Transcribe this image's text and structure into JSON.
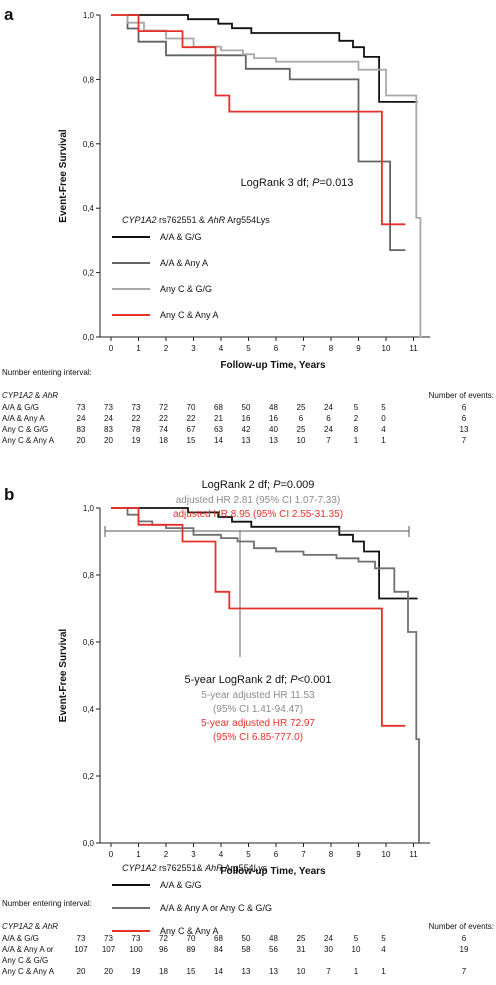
{
  "panels": [
    {
      "id": "a",
      "label": "a",
      "logrank": {
        "prefix": "LogRank 3 df; ",
        "p_label": "P",
        "p_value": "=0.013"
      },
      "hr_lines": [],
      "legend": {
        "gene1": "CYP1A2",
        "gene1_snp": " rs762551 & ",
        "gene2": "AhR",
        "gene2_variant": " Arg554Lys",
        "items": [
          "A/A & G/G",
          "A/A & Any A",
          "Any C & G/G",
          "Any C & Any A"
        ]
      },
      "table": {
        "heading": "Number entering interval:",
        "gene1": "CYP1A2",
        "amp": " & ",
        "gene2": "AhR",
        "events_heading": "Number of events:",
        "rows": [
          {
            "label": [
              "A/A & G/G"
            ],
            "counts": [
              "73",
              "73",
              "73",
              "72",
              "70",
              "68",
              "50",
              "48",
              "25",
              "24",
              "5",
              "5"
            ],
            "events": "6"
          },
          {
            "label": [
              "A/A & Any A"
            ],
            "counts": [
              "24",
              "24",
              "22",
              "22",
              "22",
              "21",
              "16",
              "16",
              "6",
              "6",
              "2",
              "0"
            ],
            "events": "6"
          },
          {
            "label": [
              "Any C & G/G"
            ],
            "counts": [
              "83",
              "83",
              "78",
              "74",
              "67",
              "63",
              "42",
              "40",
              "25",
              "24",
              "8",
              "4"
            ],
            "events": "13"
          },
          {
            "label": [
              "Any C & Any A"
            ],
            "counts": [
              "20",
              "20",
              "19",
              "18",
              "15",
              "14",
              "13",
              "13",
              "10",
              "7",
              "1",
              "1"
            ],
            "events": "7"
          }
        ]
      }
    },
    {
      "id": "b",
      "label": "b",
      "logrank": {
        "prefix": "LogRank 2 df; ",
        "p_label": "P",
        "p_value": "=0.009"
      },
      "hr_lines": [
        {
          "text": "adjusted HR 2.81 (95% CI 1.07-7.33)",
          "color": "#8c8c8c"
        },
        {
          "text": "adjusted HR 8.95 (95% CI 2.55-31.35)",
          "color": "#e8302a"
        }
      ],
      "annotation": {
        "logrank_prefix": "5-year LogRank 2 df; ",
        "p_label": "P",
        "p_value": "<0.001",
        "lines": [
          {
            "text": "5-year adjusted HR 11.53",
            "color": "#8c8c8c"
          },
          {
            "text": "(95% CI 1.41-94.47)",
            "color": "#8c8c8c"
          },
          {
            "text": "5-year adjusted HR 72.97",
            "color": "#e8302a"
          },
          {
            "text": "(95% CI 6.85-777.0)",
            "color": "#e8302a"
          }
        ]
      },
      "legend": {
        "gene1": "CYP1A2",
        "gene1_snp": " rs762551& ",
        "gene2": "AhR",
        "gene2_variant": " Arg554Lys",
        "items": [
          "A/A & G/G",
          "A/A & Any A or Any C & G/G",
          "Any C & Any A"
        ]
      },
      "table": {
        "heading": "Number entering interval:",
        "gene1": "CYP1A2",
        "amp": " & ",
        "gene2": "AhR",
        "events_heading": "Number of events:",
        "rows": [
          {
            "label": [
              "A/A & G/G"
            ],
            "counts": [
              "73",
              "73",
              "73",
              "72",
              "70",
              "68",
              "50",
              "48",
              "25",
              "24",
              "5",
              "5"
            ],
            "events": "6"
          },
          {
            "label": [
              "A/A & Any A or",
              "Any C & G/G"
            ],
            "counts": [
              "107",
              "107",
              "100",
              "96",
              "89",
              "84",
              "58",
              "56",
              "31",
              "30",
              "10",
              "4"
            ],
            "events": "19"
          },
          {
            "label": [
              "Any C & Any A"
            ],
            "counts": [
              "20",
              "20",
              "19",
              "18",
              "15",
              "14",
              "13",
              "13",
              "10",
              "7",
              "1",
              "1"
            ],
            "events": "7"
          }
        ]
      }
    }
  ],
  "chart_data": [
    {
      "type": "line",
      "panel": "a",
      "xlabel": "Follow-up Time, Years",
      "ylabel": "Event-Free Survival",
      "xlim": [
        -0.4,
        11.6
      ],
      "ylim": [
        0,
        1
      ],
      "xticks": [
        "0",
        "1",
        "2",
        "3",
        "4",
        "5",
        "6",
        "7",
        "8",
        "9",
        "10",
        "11"
      ],
      "yticks": [
        "0,0",
        "0,2",
        "0,4",
        "0,6",
        "0,8",
        "1,0"
      ],
      "step": true,
      "series": [
        {
          "name": "A/A & G/G",
          "color": "#111111",
          "x": [
            0,
            2.8,
            3.9,
            4.4,
            5.1,
            8.3,
            8.8,
            9.2,
            9.75,
            11.15
          ],
          "y": [
            1.0,
            0.987,
            0.973,
            0.959,
            0.944,
            0.92,
            0.9,
            0.87,
            0.73,
            0.73
          ]
        },
        {
          "name": "A/A & Any A",
          "color": "#636363",
          "x": [
            0,
            0.6,
            1.0,
            2.0,
            4.9,
            6.5,
            9.0,
            10.15,
            10.7
          ],
          "y": [
            1.0,
            0.958,
            0.917,
            0.875,
            0.833,
            0.8,
            0.545,
            0.27,
            0.27
          ]
        },
        {
          "name": "Any C & G/G",
          "color": "#a9a9a9",
          "x": [
            0,
            0.6,
            1.2,
            2.0,
            3.0,
            4.0,
            4.8,
            5.2,
            6.0,
            9.0,
            10.0,
            11.1,
            11.25,
            11.3
          ],
          "y": [
            1.0,
            0.976,
            0.952,
            0.927,
            0.902,
            0.89,
            0.878,
            0.866,
            0.855,
            0.83,
            0.75,
            0.37,
            0.0,
            0.0
          ]
        },
        {
          "name": "Any C & Any A",
          "color": "#e8302a",
          "x": [
            0,
            1.0,
            2.6,
            3.8,
            4.3,
            9.85,
            10.7
          ],
          "y": [
            1.0,
            0.95,
            0.9,
            0.75,
            0.7,
            0.35,
            0.35
          ]
        }
      ]
    },
    {
      "type": "line",
      "panel": "b",
      "xlabel": "Follow-up Time, Years",
      "ylabel": "Event-Free Survival",
      "xlim": [
        -0.4,
        11.6
      ],
      "ylim": [
        0,
        1
      ],
      "xticks": [
        "0",
        "1",
        "2",
        "3",
        "4",
        "5",
        "6",
        "7",
        "8",
        "9",
        "10",
        "11"
      ],
      "yticks": [
        "0,0",
        "0,2",
        "0,4",
        "0,6",
        "0,8",
        "1,0"
      ],
      "step": true,
      "series": [
        {
          "name": "A/A & G/G",
          "color": "#111111",
          "x": [
            0,
            2.8,
            3.9,
            4.4,
            5.1,
            8.3,
            8.8,
            9.2,
            9.75,
            11.15
          ],
          "y": [
            1.0,
            0.987,
            0.973,
            0.959,
            0.944,
            0.92,
            0.9,
            0.87,
            0.73,
            0.73
          ]
        },
        {
          "name": "A/A & Any A or Any C & G/G",
          "color": "#707070",
          "x": [
            0,
            0.6,
            1.0,
            1.5,
            2.0,
            3.0,
            4.0,
            4.6,
            5.2,
            6.0,
            7.0,
            8.2,
            9.0,
            9.6,
            10.3,
            10.8,
            11.1,
            11.2,
            11.25
          ],
          "y": [
            1.0,
            0.98,
            0.96,
            0.95,
            0.94,
            0.92,
            0.91,
            0.9,
            0.88,
            0.87,
            0.86,
            0.85,
            0.84,
            0.82,
            0.75,
            0.63,
            0.31,
            0.0,
            0.0
          ]
        },
        {
          "name": "Any C & Any A",
          "color": "#e8302a",
          "x": [
            0,
            1.0,
            2.6,
            3.8,
            4.3,
            9.85,
            10.7
          ],
          "y": [
            1.0,
            0.95,
            0.9,
            0.75,
            0.7,
            0.35,
            0.35
          ]
        }
      ]
    }
  ]
}
